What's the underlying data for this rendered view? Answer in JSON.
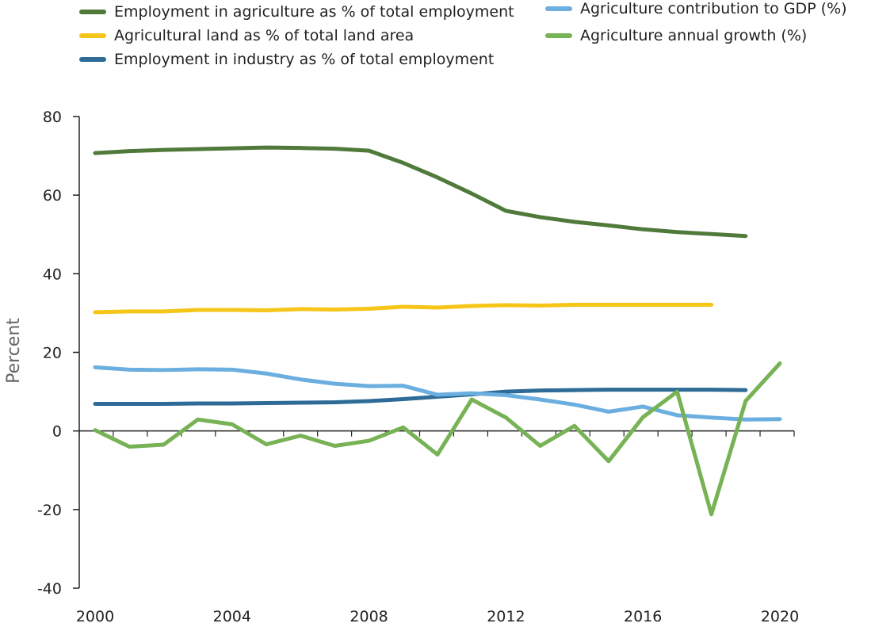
{
  "chart_data": {
    "type": "line",
    "ylabel": "Percent",
    "xlabel": "",
    "ylim": [
      -40,
      80
    ],
    "xlim": [
      2000,
      2020
    ],
    "yticks": [
      -40,
      -20,
      0,
      20,
      40,
      60,
      80
    ],
    "xtick_labels": [
      "2000",
      "2004",
      "2008",
      "2012",
      "2016",
      "2020"
    ],
    "legend": "top",
    "grid": false,
    "series": [
      {
        "name": "Employment in agriculture as % of total employment",
        "color": "#4f7a3a",
        "x": [
          2000,
          2001,
          2002,
          2003,
          2004,
          2005,
          2006,
          2007,
          2008,
          2009,
          2010,
          2011,
          2012,
          2013,
          2014,
          2015,
          2016,
          2017,
          2018,
          2019
        ],
        "values": [
          70.7,
          71.2,
          71.5,
          71.7,
          71.9,
          72.1,
          72.0,
          71.8,
          71.3,
          68.2,
          64.5,
          60.4,
          56.0,
          54.4,
          53.2,
          52.3,
          51.3,
          50.6,
          50.1,
          49.6
        ]
      },
      {
        "name": "Agricultural land as % of total land area",
        "color": "#f5c518",
        "x": [
          2000,
          2001,
          2002,
          2003,
          2004,
          2005,
          2006,
          2007,
          2008,
          2009,
          2010,
          2011,
          2012,
          2013,
          2014,
          2015,
          2016,
          2017,
          2018
        ],
        "values": [
          30.2,
          30.4,
          30.4,
          30.8,
          30.8,
          30.7,
          31.0,
          30.9,
          31.1,
          31.6,
          31.4,
          31.8,
          32.0,
          31.9,
          32.1,
          32.1,
          32.1,
          32.1,
          32.1
        ]
      },
      {
        "name": "Employment in industry as % of total employment",
        "color": "#2e6b96",
        "x": [
          2000,
          2001,
          2002,
          2003,
          2004,
          2005,
          2006,
          2007,
          2008,
          2009,
          2010,
          2011,
          2012,
          2013,
          2014,
          2015,
          2016,
          2017,
          2018,
          2019
        ],
        "values": [
          6.9,
          6.9,
          6.9,
          7.0,
          7.0,
          7.1,
          7.2,
          7.3,
          7.6,
          8.1,
          8.7,
          9.3,
          10.0,
          10.3,
          10.4,
          10.5,
          10.5,
          10.5,
          10.5,
          10.4
        ]
      },
      {
        "name": "Agriculture contribution to GDP (%)",
        "color": "#6baee0",
        "x": [
          2000,
          2001,
          2002,
          2003,
          2004,
          2005,
          2006,
          2007,
          2008,
          2009,
          2010,
          2011,
          2012,
          2013,
          2014,
          2015,
          2016,
          2017,
          2018,
          2019,
          2020
        ],
        "values": [
          16.2,
          15.6,
          15.5,
          15.7,
          15.6,
          14.6,
          13.1,
          12.0,
          11.4,
          11.5,
          9.2,
          9.6,
          9.1,
          8.0,
          6.7,
          4.9,
          6.2,
          4.0,
          3.4,
          2.9,
          3.0
        ]
      },
      {
        "name": "Agriculture annual growth (%)",
        "color": "#77b255",
        "x": [
          2000,
          2001,
          2002,
          2003,
          2004,
          2005,
          2006,
          2007,
          2008,
          2009,
          2010,
          2011,
          2012,
          2013,
          2014,
          2015,
          2016,
          2017,
          2018,
          2019,
          2020
        ],
        "values": [
          0.2,
          -4.0,
          -3.5,
          2.9,
          1.7,
          -3.4,
          -1.2,
          -3.8,
          -2.5,
          0.9,
          -6.0,
          8.0,
          3.4,
          -3.8,
          1.3,
          -7.7,
          3.5,
          10.0,
          -21.2,
          7.6,
          17.2
        ]
      }
    ]
  }
}
